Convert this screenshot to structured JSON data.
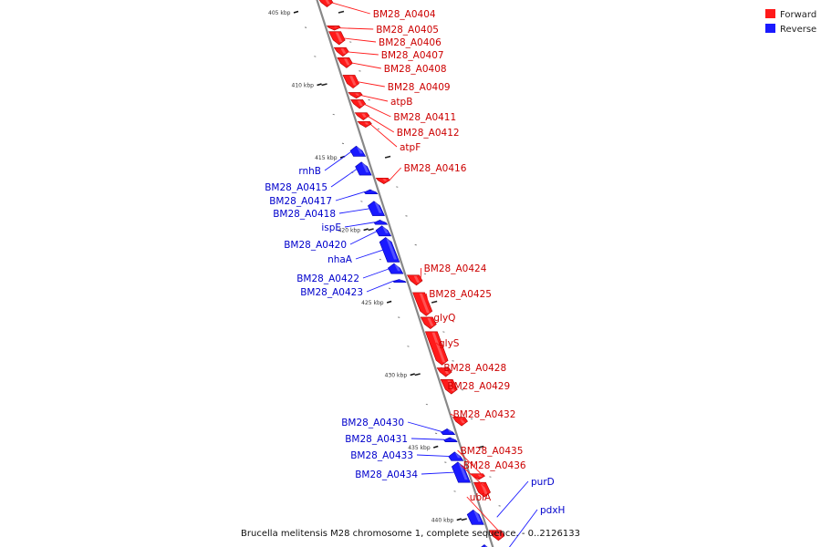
{
  "caption": "Brucella melitensis M28 chromosome 1, complete sequence. - 0..2126133",
  "legend": [
    {
      "label": "Forward",
      "color": "#ff1a1a"
    },
    {
      "label": "Reverse",
      "color": "#1a1aff"
    }
  ],
  "colors": {
    "forward": "#ff1a1a",
    "reverse": "#1a1aff",
    "backbone": "#888888"
  },
  "kbp_marks": [
    {
      "kbp": 405,
      "label": "405 kbp"
    },
    {
      "kbp": 410,
      "label": "410 kbp"
    },
    {
      "kbp": 415,
      "label": "415 kbp"
    },
    {
      "kbp": 420,
      "label": "420 kbp"
    },
    {
      "kbp": 425,
      "label": "425 kbp"
    },
    {
      "kbp": 430,
      "label": "430 kbp"
    },
    {
      "kbp": 435,
      "label": "435 kbp"
    },
    {
      "kbp": 440,
      "label": "440 kbp"
    }
  ],
  "forward_genes": [
    {
      "name": "BM28_A0404",
      "start_kbp": 404.0,
      "end_kbp": 404.6
    },
    {
      "name": "BM28_A0405",
      "start_kbp": 405.9,
      "end_kbp": 406.2
    },
    {
      "name": "BM28_A0406",
      "start_kbp": 406.3,
      "end_kbp": 407.2
    },
    {
      "name": "BM28_A0407",
      "start_kbp": 407.4,
      "end_kbp": 408.0
    },
    {
      "name": "BM28_A0408",
      "start_kbp": 408.1,
      "end_kbp": 408.8
    },
    {
      "name": "BM28_A0409",
      "start_kbp": 409.3,
      "end_kbp": 410.2
    },
    {
      "name": "atpB",
      "start_kbp": 410.5,
      "end_kbp": 410.9
    },
    {
      "name": "BM28_A0411",
      "start_kbp": 411.0,
      "end_kbp": 411.6
    },
    {
      "name": "BM28_A0412",
      "start_kbp": 411.9,
      "end_kbp": 412.4
    },
    {
      "name": "atpF",
      "start_kbp": 412.5,
      "end_kbp": 412.9
    },
    {
      "name": "BM28_A0416",
      "start_kbp": 416.4,
      "end_kbp": 416.8
    },
    {
      "name": "BM28_A0424",
      "start_kbp": 423.1,
      "end_kbp": 423.8
    },
    {
      "name": "BM28_A0425",
      "start_kbp": 424.3,
      "end_kbp": 425.9
    },
    {
      "name": "glyQ",
      "start_kbp": 426.0,
      "end_kbp": 426.8
    },
    {
      "name": "glyS",
      "start_kbp": 427.0,
      "end_kbp": 429.3
    },
    {
      "name": "BM28_A0428",
      "start_kbp": 429.5,
      "end_kbp": 430.1
    },
    {
      "name": "BM28_A0429",
      "start_kbp": 430.3,
      "end_kbp": 431.3
    },
    {
      "name": "BM28_A0432",
      "start_kbp": 432.9,
      "end_kbp": 433.5
    },
    {
      "name": "BM28_A0435",
      "start_kbp": 436.8,
      "end_kbp": 437.2
    },
    {
      "name": "BM28_A0436",
      "start_kbp": 437.4,
      "end_kbp": 438.4
    },
    {
      "name": "ubiA",
      "start_kbp": 440.7,
      "end_kbp": 441.4
    }
  ],
  "reverse_genes": [
    {
      "name": "rnhB",
      "start_kbp": 414.2,
      "end_kbp": 414.9
    },
    {
      "name": "BM28_A0415",
      "start_kbp": 415.3,
      "end_kbp": 416.2
    },
    {
      "name": "BM28_A0417",
      "start_kbp": 417.2,
      "end_kbp": 417.5
    },
    {
      "name": "BM28_A0418",
      "start_kbp": 418.0,
      "end_kbp": 419.0
    },
    {
      "name": "ispE",
      "start_kbp": 419.3,
      "end_kbp": 419.6
    },
    {
      "name": "BM28_A0420",
      "start_kbp": 419.7,
      "end_kbp": 420.4
    },
    {
      "name": "nhaA",
      "start_kbp": 420.5,
      "end_kbp": 422.2
    },
    {
      "name": "BM28_A0422",
      "start_kbp": 422.3,
      "end_kbp": 423.0
    },
    {
      "name": "BM28_A0423",
      "start_kbp": 423.4,
      "end_kbp": 423.6
    },
    {
      "name": "BM28_A0430",
      "start_kbp": 433.7,
      "end_kbp": 434.1
    },
    {
      "name": "BM28_A0431",
      "start_kbp": 434.3,
      "end_kbp": 434.6
    },
    {
      "name": "BM28_A0433",
      "start_kbp": 435.3,
      "end_kbp": 435.9
    },
    {
      "name": "BM28_A0434",
      "start_kbp": 436.0,
      "end_kbp": 437.4
    },
    {
      "name": "purD",
      "start_kbp": 439.3,
      "end_kbp": 440.3
    },
    {
      "name": "pdxH",
      "start_kbp": 441.7,
      "end_kbp": 442.4
    }
  ]
}
